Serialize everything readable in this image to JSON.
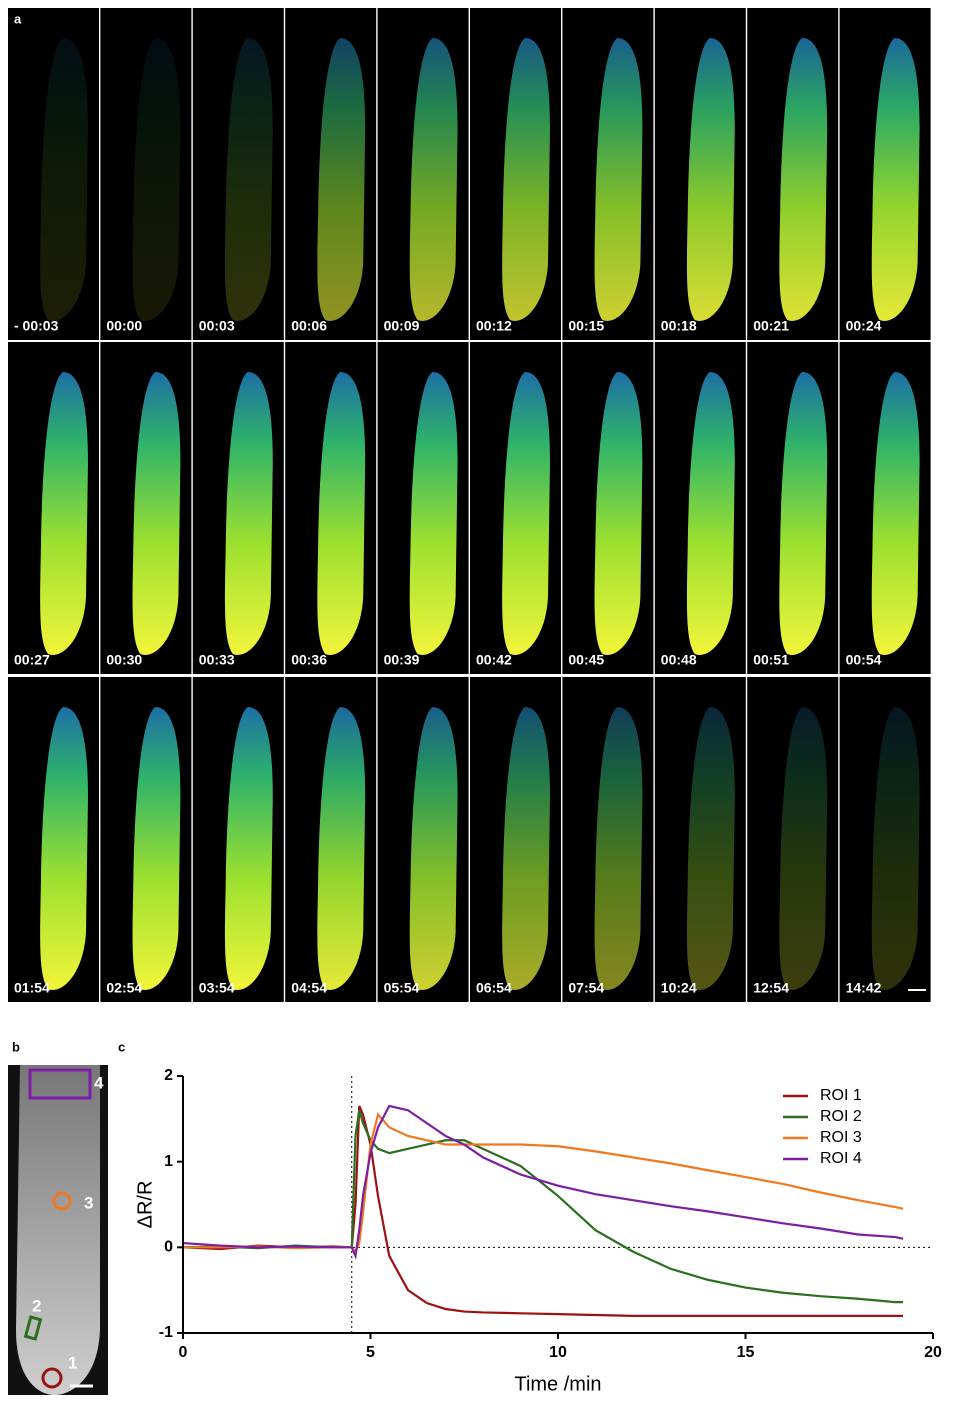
{
  "panel_a": {
    "label": "a",
    "timestamps": [
      "- 00:03",
      "00:00",
      "00:03",
      "00:06",
      "00:09",
      "00:12",
      "00:15",
      "00:18",
      "00:21",
      "00:24",
      "00:27",
      "00:30",
      "00:33",
      "00:36",
      "00:39",
      "00:42",
      "00:45",
      "00:48",
      "00:51",
      "00:54",
      "01:54",
      "02:54",
      "03:54",
      "04:54",
      "05:54",
      "06:54",
      "07:54",
      "10:24",
      "12:54",
      "14:42"
    ]
  },
  "panel_b": {
    "label": "b",
    "roi_labels": [
      "1",
      "2",
      "3",
      "4"
    ]
  },
  "panel_c": {
    "label": "c"
  },
  "chart_data": {
    "type": "line",
    "xlabel": "Time /min",
    "ylabel": "ΔR/R",
    "x": [
      0,
      1,
      2,
      3,
      4,
      4.5,
      4.6,
      4.7,
      4.8,
      5,
      5.2,
      5.5,
      6,
      6.5,
      7,
      7.5,
      8,
      9,
      10,
      11,
      12,
      13,
      14,
      15,
      16,
      17,
      18,
      19,
      19.2
    ],
    "series": [
      {
        "name": "ROI 1",
        "color": "#9b1212",
        "values": [
          0,
          -0.02,
          0.02,
          0,
          0.01,
          0,
          0.5,
          1.65,
          1.55,
          1.2,
          0.6,
          -0.1,
          -0.5,
          -0.65,
          -0.72,
          -0.75,
          -0.76,
          -0.77,
          -0.78,
          -0.79,
          -0.8,
          -0.8,
          -0.8,
          -0.8,
          -0.8,
          -0.8,
          -0.8,
          -0.8,
          -0.8
        ]
      },
      {
        "name": "ROI 2",
        "color": "#2a6e1e",
        "values": [
          0,
          0.01,
          -0.01,
          0.02,
          0,
          0,
          1.3,
          1.6,
          1.45,
          1.25,
          1.15,
          1.1,
          1.15,
          1.2,
          1.25,
          1.25,
          1.15,
          0.95,
          0.6,
          0.2,
          -0.05,
          -0.25,
          -0.38,
          -0.47,
          -0.53,
          -0.57,
          -0.6,
          -0.64,
          -0.64
        ]
      },
      {
        "name": "ROI 3",
        "color": "#f07820",
        "values": [
          0,
          0,
          0.01,
          -0.01,
          0,
          0,
          -0.05,
          0.05,
          0.4,
          1.2,
          1.55,
          1.4,
          1.3,
          1.25,
          1.2,
          1.2,
          1.2,
          1.2,
          1.18,
          1.12,
          1.05,
          0.98,
          0.9,
          0.82,
          0.74,
          0.64,
          0.55,
          0.47,
          0.45
        ]
      },
      {
        "name": "ROI 4",
        "color": "#7b1fa2",
        "values": [
          0.05,
          0.02,
          0,
          0.01,
          0,
          0,
          -0.1,
          0.2,
          0.6,
          1.1,
          1.4,
          1.65,
          1.6,
          1.45,
          1.3,
          1.2,
          1.05,
          0.85,
          0.72,
          0.62,
          0.55,
          0.48,
          0.42,
          0.35,
          0.28,
          0.22,
          0.15,
          0.12,
          0.1
        ]
      }
    ],
    "xlim": [
      0,
      20
    ],
    "ylim": [
      -1,
      2
    ],
    "xticks": [
      0,
      5,
      10,
      15,
      20
    ],
    "yticks": [
      -1,
      0,
      1,
      2
    ],
    "vlines": [
      4.5
    ],
    "hlines": [
      0
    ],
    "legend": "upper right"
  }
}
